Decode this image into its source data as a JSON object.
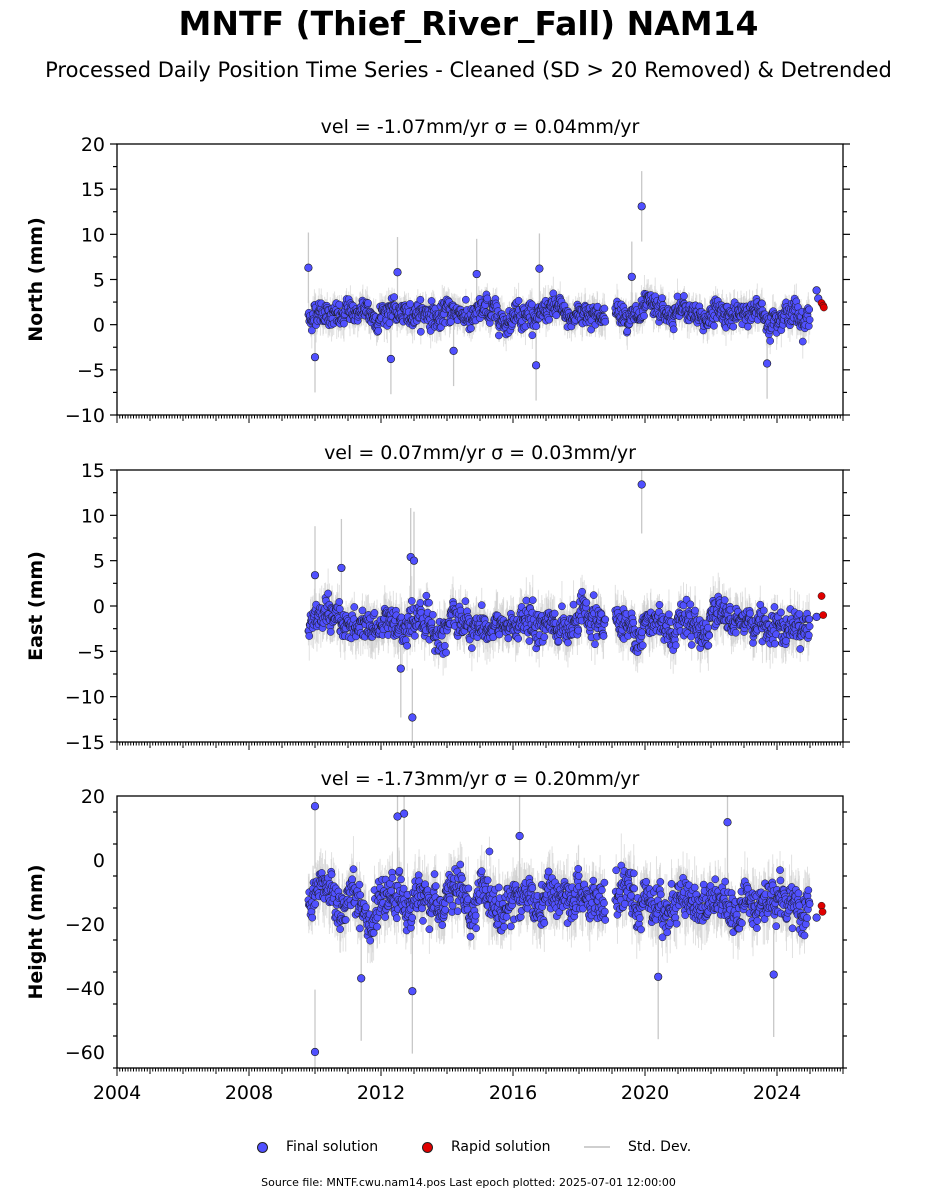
{
  "title": "MNTF (Thief_River_Fall) NAM14",
  "subtitle": "Processed Daily Position Time Series - Cleaned (SD > 20 Removed) & Detrended",
  "legend": {
    "final": "Final solution",
    "rapid": "Rapid solution",
    "std": "Std. Dev."
  },
  "source": "Source file: MNTF.cwu.nam14.pos  Last epoch plotted: 2025-07-01 12:00:00",
  "colors": {
    "final": "#5050ff",
    "rapid": "#e00000",
    "std": "#c8c8c8"
  },
  "chart_data": [
    {
      "type": "scatter",
      "title": "vel = -1.07mm/yr   σ = 0.04mm/yr",
      "ylabel": "North (mm)",
      "xlim": [
        2004.0,
        2026.0
      ],
      "ylim": [
        -10,
        20
      ],
      "yticks": [
        -10,
        -5,
        0,
        5,
        10,
        15,
        20
      ],
      "segments": [
        [
          2009.8,
          2018.8
        ],
        [
          2019.1,
          2025.0
        ]
      ],
      "mean": 1.2,
      "spread": 1.3,
      "outliers": [
        [
          2009.8,
          6.3
        ],
        [
          2012.5,
          5.8
        ],
        [
          2014.9,
          5.6
        ],
        [
          2016.8,
          6.2
        ],
        [
          2016.7,
          -4.5
        ],
        [
          2019.6,
          5.3
        ],
        [
          2019.9,
          13.1
        ],
        [
          2012.3,
          -3.8
        ],
        [
          2010.0,
          -3.6
        ],
        [
          2023.7,
          -4.3
        ],
        [
          2014.2,
          -2.9
        ]
      ],
      "rapid": [
        [
          2025.35,
          2.4
        ],
        [
          2025.4,
          2.1
        ],
        [
          2025.42,
          1.9
        ]
      ],
      "rapid_gap": [
        [
          2025.2,
          3.8
        ],
        [
          2025.25,
          2.9
        ]
      ]
    },
    {
      "type": "scatter",
      "title": "vel = 0.07mm/yr   σ = 0.03mm/yr",
      "ylabel": "East (mm)",
      "xlim": [
        2004.0,
        2026.0
      ],
      "ylim": [
        -15,
        15
      ],
      "yticks": [
        -15,
        -10,
        -5,
        0,
        5,
        10,
        15
      ],
      "segments": [
        [
          2009.8,
          2018.8
        ],
        [
          2019.1,
          2025.0
        ]
      ],
      "mean": -2.0,
      "spread": 1.8,
      "outliers": [
        [
          2012.9,
          5.4
        ],
        [
          2013.0,
          5.0
        ],
        [
          2012.95,
          -12.3
        ],
        [
          2019.9,
          13.4
        ],
        [
          2012.6,
          -6.9
        ],
        [
          2010.0,
          3.4
        ],
        [
          2010.8,
          4.2
        ]
      ],
      "rapid": [
        [
          2025.35,
          1.1
        ],
        [
          2025.4,
          -1.0
        ]
      ],
      "rapid_gap": [
        [
          2025.2,
          -1.2
        ]
      ]
    },
    {
      "type": "scatter",
      "title": "vel = -1.73mm/yr   σ = 0.20mm/yr",
      "ylabel": "Height (mm)",
      "xlim": [
        2004.0,
        2026.0
      ],
      "ylim": [
        -65,
        20
      ],
      "yticks": [
        -60,
        -40,
        -20,
        0,
        20
      ],
      "xticks": [
        2004,
        2008,
        2012,
        2016,
        2020,
        2024
      ],
      "segments": [
        [
          2009.8,
          2018.8
        ],
        [
          2019.1,
          2025.0
        ]
      ],
      "mean": -13.0,
      "spread": 6.5,
      "outliers": [
        [
          2010.0,
          16.8
        ],
        [
          2010.0,
          -60.0
        ],
        [
          2012.7,
          14.5
        ],
        [
          2012.5,
          13.6
        ],
        [
          2012.95,
          -41.0
        ],
        [
          2011.4,
          -37.0
        ],
        [
          2020.4,
          -36.5
        ],
        [
          2023.9,
          -35.8
        ],
        [
          2022.5,
          11.8
        ],
        [
          2016.2,
          7.5
        ]
      ],
      "rapid": [
        [
          2025.35,
          -14.3
        ],
        [
          2025.38,
          -16.2
        ]
      ],
      "rapid_gap": [
        [
          2025.2,
          -18.0
        ]
      ]
    }
  ]
}
